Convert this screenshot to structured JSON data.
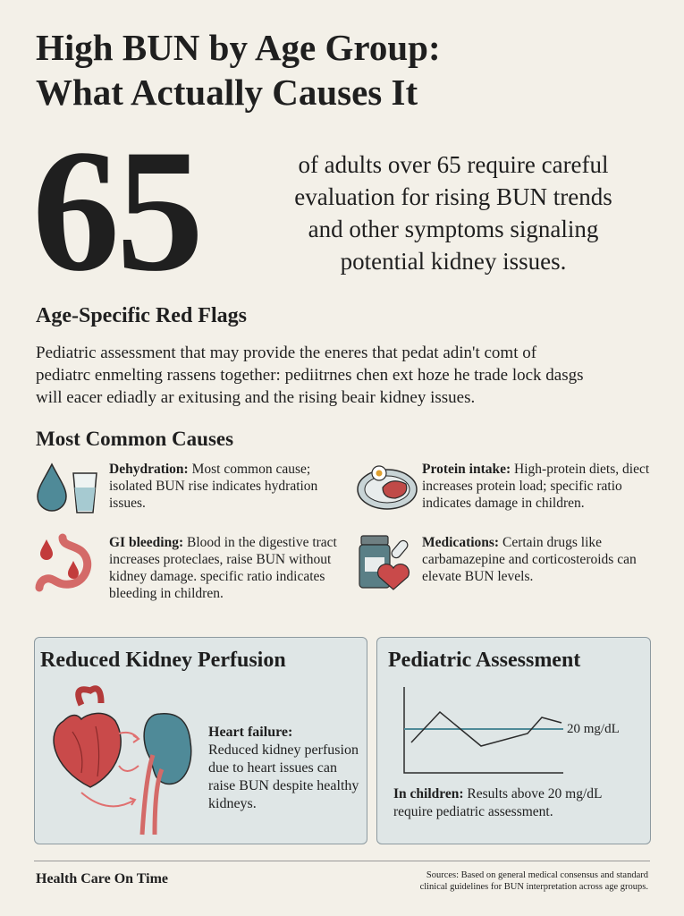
{
  "header": {
    "title_lines": [
      "High BUN by Age Group:",
      "What Actually Causes It"
    ]
  },
  "stat": {
    "number": "65",
    "text_lines": [
      "of adults over 65 require careful",
      "evaluation for rising BUN trends",
      "and other symptoms signaling",
      "potential kidney issues."
    ]
  },
  "red_flags": {
    "heading": "Age-Specific Red Flags",
    "lines": [
      "Pediatric assessment that may provide the eneres that pedat adin't comt of",
      "pediatrc enmelting rassens together: pediitrnes chen ext hoze he trade lock dasgs",
      "will eacer ediadly ar exitusing and the rising beair kidney issues."
    ]
  },
  "causes": {
    "heading": "Most Common Causes",
    "items": [
      {
        "label": "Dehydration:",
        "text": "Most common cause; isolated BUN rise indicates hydration issues."
      },
      {
        "label": "Protein intake:",
        "text": "High-protein diets, diect increases protein load; specific ratio indicates  damage in children."
      },
      {
        "label": "GI bleeding:",
        "text": "Blood in the digestive tract increases proteclaes, raise BUN without kidney damage. specific ratio indicates bleeding in children."
      },
      {
        "label": "Medications:",
        "text": "Certain drugs like carbamazepine and corticosteroids can elevate BUN levels."
      }
    ]
  },
  "panels": [
    {
      "title": "Reduced Kidney Perfusion",
      "label": "Heart failure:",
      "text": "Reduced kidney perfusion due to heart issues can raise BUN despite healthy kidneys."
    },
    {
      "title": "Pediatric Assessment",
      "reference_label": "20 mg/dL",
      "label": "In children:",
      "text": "Results above 20 mg/dL require pediatric assessment."
    }
  ],
  "footer": {
    "brand": "Health Care On Time",
    "sources_lines": [
      "Sources: Based on general medical consensus and standard",
      "clinical guidelines for BUN interpretation across age groups."
    ]
  }
}
